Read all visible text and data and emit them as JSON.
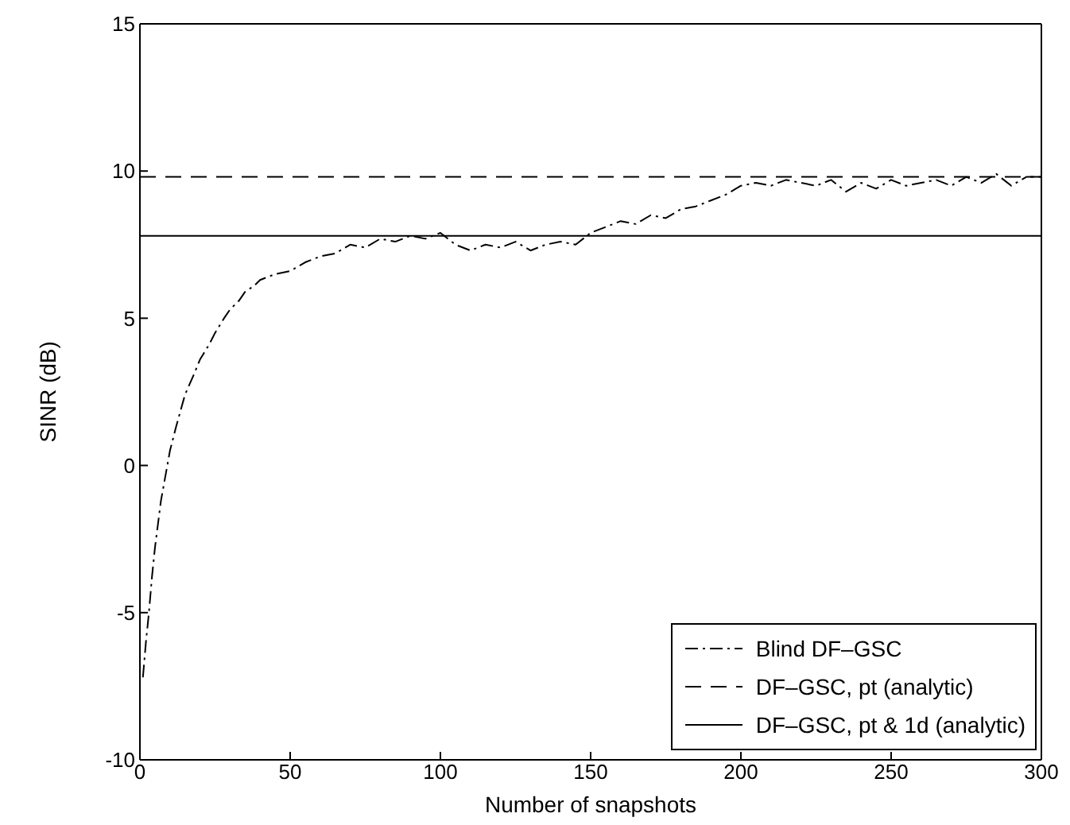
{
  "chart_data": {
    "type": "line",
    "xlabel": "Number of snapshots",
    "ylabel": "SINR (dB)",
    "xlim": [
      0,
      300
    ],
    "xticks": [
      0,
      50,
      100,
      150,
      200,
      250,
      300
    ],
    "ylim": [
      -10,
      15
    ],
    "yticks": [
      -10,
      -5,
      0,
      5,
      10,
      15
    ],
    "grid": false,
    "legend": "bottom right",
    "marker": "none",
    "series": [
      {
        "name": "Blind DF–GSC",
        "color": "#000000",
        "line_style": "dashdot",
        "x": [
          1,
          2,
          3,
          4,
          5,
          7,
          10,
          12,
          15,
          18,
          20,
          23,
          25,
          28,
          30,
          33,
          35,
          38,
          40,
          45,
          50,
          55,
          60,
          65,
          70,
          75,
          80,
          85,
          90,
          95,
          100,
          105,
          110,
          115,
          120,
          125,
          130,
          135,
          140,
          145,
          150,
          155,
          160,
          165,
          170,
          175,
          180,
          185,
          190,
          195,
          200,
          205,
          210,
          215,
          220,
          225,
          230,
          235,
          240,
          245,
          250,
          255,
          260,
          265,
          270,
          275,
          280,
          285,
          290,
          295,
          300
        ],
        "values": [
          -7.2,
          -6,
          -5,
          -3.8,
          -2.8,
          -1.2,
          0.5,
          1.3,
          2.4,
          3.1,
          3.6,
          4.1,
          4.5,
          5,
          5.3,
          5.6,
          5.9,
          6.1,
          6.3,
          6.5,
          6.6,
          6.9,
          7.1,
          7.2,
          7.5,
          7.4,
          7.7,
          7.6,
          7.8,
          7.7,
          7.9,
          7.5,
          7.3,
          7.5,
          7.4,
          7.6,
          7.3,
          7.5,
          7.6,
          7.5,
          7.9,
          8.1,
          8.3,
          8.2,
          8.5,
          8.4,
          8.7,
          8.8,
          9,
          9.2,
          9.5,
          9.6,
          9.5,
          9.7,
          9.6,
          9.5,
          9.7,
          9.3,
          9.6,
          9.4,
          9.7,
          9.5,
          9.6,
          9.7,
          9.5,
          9.8,
          9.6,
          9.9,
          9.5,
          9.8,
          9.8
        ]
      },
      {
        "name": "DF–GSC, pt (analytic)",
        "color": "#000000",
        "line_style": "dashed",
        "x": [
          0,
          300
        ],
        "values": [
          9.8,
          9.8
        ]
      },
      {
        "name": "DF–GSC, pt & 1d (analytic)",
        "color": "#000000",
        "line_style": "solid",
        "x": [
          0,
          300
        ],
        "values": [
          7.8,
          7.8
        ]
      }
    ]
  }
}
